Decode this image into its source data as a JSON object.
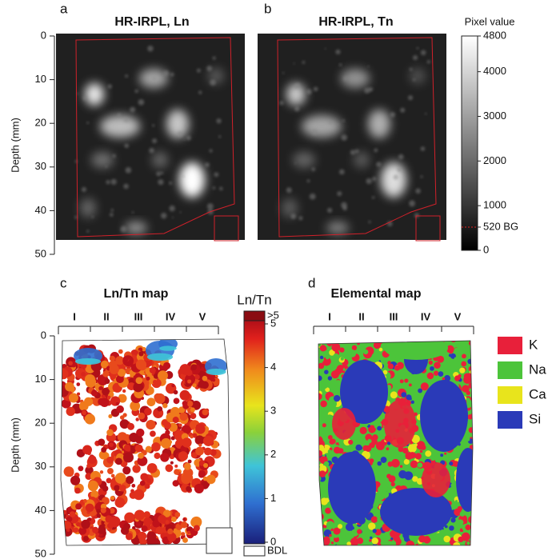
{
  "panels": [
    {
      "letter": "a",
      "title": "HR-IRPL, Ln",
      "y_label": "Depth (mm)",
      "ylim": [
        0,
        50
      ],
      "yticks": [
        0,
        10,
        20,
        30,
        40,
        50
      ]
    },
    {
      "letter": "b",
      "title": "HR-IRPL, Tn"
    },
    {
      "letter": "c",
      "title": "Ln/Tn map",
      "y_label": "Depth (mm)",
      "ylim": [
        0,
        50
      ],
      "yticks": [
        0,
        10,
        20,
        30,
        40,
        50
      ],
      "zones": [
        "I",
        "II",
        "III",
        "IV",
        "V"
      ]
    },
    {
      "letter": "d",
      "title": "Elemental map",
      "zones": [
        "I",
        "II",
        "III",
        "IV",
        "V"
      ],
      "legend": [
        {
          "name": "K",
          "color": "#e8203a"
        },
        {
          "name": "Na",
          "color": "#4cc43a"
        },
        {
          "name": "Ca",
          "color": "#e8e41c"
        },
        {
          "name": "Si",
          "color": "#2a3ab8"
        }
      ]
    }
  ],
  "colorbar_pixel": {
    "title": "Pixel value",
    "lim": [
      0,
      4800
    ],
    "ticks": [
      0,
      {
        "value": 520,
        "label": "520 BG"
      },
      1000,
      2000,
      3000,
      4000,
      4800
    ]
  },
  "colorbar_ratio": {
    "title": "Ln/Tn",
    "lim": [
      0,
      5
    ],
    "ticks": [
      0,
      1,
      2,
      3,
      4,
      5
    ],
    "over_label": ">5",
    "under_label": "BDL"
  }
}
